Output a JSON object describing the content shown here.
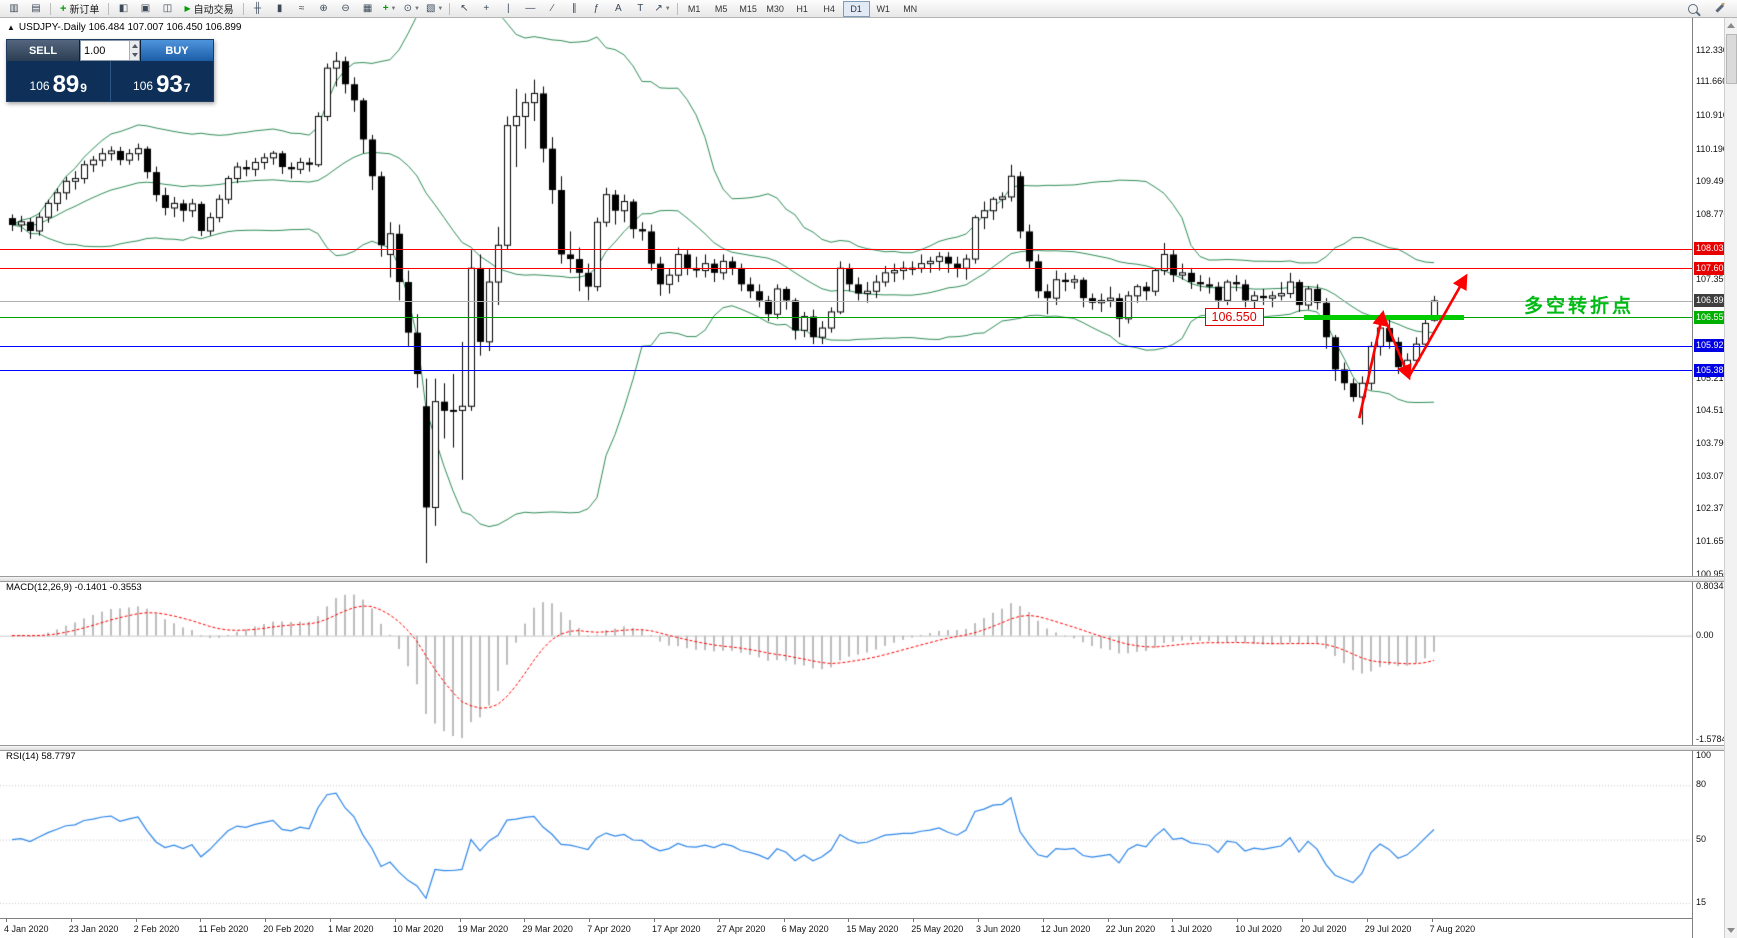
{
  "toolbar": {
    "window_icons": [
      {
        "name": "new-chart",
        "glyph": "▥"
      },
      {
        "name": "chart-profiles",
        "glyph": "▤"
      }
    ],
    "new_order_label": "新订单",
    "panel_icons": [
      {
        "name": "market-watch",
        "glyph": "◧"
      },
      {
        "name": "navigator",
        "glyph": "▣"
      },
      {
        "name": "terminal",
        "glyph": "◫"
      }
    ],
    "auto_trading_label": "自动交易",
    "chart_tool_icons": [
      {
        "name": "bar-chart",
        "glyph": "╫"
      },
      {
        "name": "candlestick-chart",
        "glyph": "▮"
      },
      {
        "name": "line-chart",
        "glyph": "≈"
      },
      {
        "name": "zoom-in",
        "glyph": "⊕"
      },
      {
        "name": "zoom-out",
        "glyph": "⊖"
      },
      {
        "name": "tile-windows",
        "glyph": "▦"
      },
      {
        "name": "indicators",
        "glyph": "+"
      },
      {
        "name": "periods",
        "glyph": "⊙"
      },
      {
        "name": "templates",
        "glyph": "▧"
      }
    ],
    "draw_tool_icons": [
      {
        "name": "cursor",
        "glyph": "↖"
      },
      {
        "name": "crosshair",
        "glyph": "+"
      },
      {
        "name": "vertical-line",
        "glyph": "|"
      },
      {
        "name": "horizontal-line",
        "glyph": "—"
      },
      {
        "name": "trend-line",
        "glyph": "∕"
      },
      {
        "name": "channel",
        "glyph": "∥"
      },
      {
        "name": "fibonacci",
        "glyph": "ƒ"
      },
      {
        "name": "text",
        "glyph": "A"
      },
      {
        "name": "text-label",
        "glyph": "T"
      },
      {
        "name": "arrow-objects",
        "glyph": "↗"
      }
    ],
    "timeframes": [
      "M1",
      "M5",
      "M15",
      "M30",
      "H1",
      "H4",
      "D1",
      "W1",
      "MN"
    ],
    "active_timeframe": "D1"
  },
  "symbol_bar": {
    "marker": "▲",
    "text": "USDJPY-.Daily  106.484 107.007 106.450 106.899"
  },
  "trade_panel": {
    "sell_label": "SELL",
    "buy_label": "BUY",
    "volume": "1.00",
    "sell_price": {
      "prefix": "106",
      "big": "89",
      "sup": "9"
    },
    "buy_price": {
      "prefix": "106",
      "big": "93",
      "sup": "7"
    }
  },
  "chart_data": {
    "type": "candlestick",
    "symbol": "USDJPY-",
    "period": "Daily",
    "colors": {
      "bull": "#FFFFFF",
      "bear": "#000000",
      "outline": "#000000",
      "bollinger": "#2E8B57",
      "histogram": "#BDBDBD",
      "macd_signal": "#FF0000",
      "rsi_line": "#2E86E8",
      "grid": "#C9C9C9"
    },
    "price_axis": {
      "max": 113.05,
      "min": 100.92,
      "plain_labels": [
        [
          "112.330",
          112.33
        ],
        [
          "111.660",
          111.66
        ],
        [
          "110.910",
          110.91
        ],
        [
          "110.190",
          110.19
        ],
        [
          "109.490",
          109.49
        ],
        [
          "108.770",
          108.77
        ],
        [
          "107.350",
          107.35
        ],
        [
          "105.210",
          105.21
        ],
        [
          "104.510",
          104.51
        ],
        [
          "103.790",
          103.79
        ],
        [
          "103.070",
          103.07
        ],
        [
          "102.370",
          102.37
        ],
        [
          "101.650",
          101.65
        ],
        [
          "100.950",
          100.95
        ]
      ]
    },
    "levels": [
      {
        "text": "108.035",
        "value": 108.035,
        "line_color": "#FF0000",
        "tag_bg": "#E80000"
      },
      {
        "text": "107.605",
        "value": 107.605,
        "line_color": "#FF0000",
        "tag_bg": "#E80000"
      },
      {
        "text": "106.899",
        "value": 106.899,
        "line_color": "#AFAFAF",
        "tag_bg": "#3F3F3F"
      },
      {
        "text": "106.550",
        "value": 106.55,
        "line_color": "#00A000",
        "tag_bg": "#00B000"
      },
      {
        "text": "105.926",
        "value": 105.926,
        "line_color": "#0000FF",
        "tag_bg": "#0000E6"
      },
      {
        "text": "105.388",
        "value": 105.388,
        "line_color": "#0000FF",
        "tag_bg": "#0000E6"
      }
    ],
    "bollinger": {
      "period": 20,
      "deviation": 2
    },
    "candles": [
      [
        108.7,
        108.78,
        108.42,
        108.55
      ],
      [
        108.55,
        108.75,
        108.4,
        108.62
      ],
      [
        108.62,
        108.7,
        108.25,
        108.42
      ],
      [
        108.42,
        108.82,
        108.32,
        108.72
      ],
      [
        108.72,
        109.1,
        108.6,
        109.02
      ],
      [
        109.02,
        109.35,
        108.85,
        109.25
      ],
      [
        109.25,
        109.6,
        109.1,
        109.5
      ],
      [
        109.5,
        109.72,
        109.32,
        109.56
      ],
      [
        109.56,
        109.95,
        109.45,
        109.86
      ],
      [
        109.86,
        110.05,
        109.7,
        109.96
      ],
      [
        109.96,
        110.22,
        109.82,
        110.1
      ],
      [
        110.1,
        110.26,
        109.95,
        110.16
      ],
      [
        110.16,
        110.25,
        109.85,
        109.96
      ],
      [
        109.96,
        110.2,
        109.86,
        110.1
      ],
      [
        110.1,
        110.32,
        109.95,
        110.21
      ],
      [
        110.21,
        110.26,
        109.56,
        109.7
      ],
      [
        109.7,
        109.82,
        109.06,
        109.2
      ],
      [
        109.2,
        109.36,
        108.76,
        108.92
      ],
      [
        108.92,
        109.16,
        108.72,
        109.02
      ],
      [
        109.02,
        109.1,
        108.62,
        108.86
      ],
      [
        108.86,
        109.12,
        108.72,
        109.01
      ],
      [
        109.01,
        109.06,
        108.31,
        108.42
      ],
      [
        108.42,
        108.82,
        108.32,
        108.71
      ],
      [
        108.71,
        109.21,
        108.61,
        109.11
      ],
      [
        109.11,
        109.62,
        109.01,
        109.56
      ],
      [
        109.56,
        109.91,
        109.46,
        109.81
      ],
      [
        109.81,
        109.96,
        109.61,
        109.76
      ],
      [
        109.76,
        110.01,
        109.61,
        109.91
      ],
      [
        109.91,
        110.11,
        109.76,
        110.01
      ],
      [
        110.01,
        110.16,
        109.86,
        110.11
      ],
      [
        110.11,
        110.16,
        109.66,
        109.81
      ],
      [
        109.81,
        109.91,
        109.56,
        109.76
      ],
      [
        109.76,
        110.01,
        109.66,
        109.91
      ],
      [
        109.91,
        110.01,
        109.71,
        109.86
      ],
      [
        109.86,
        111.0,
        109.81,
        110.91
      ],
      [
        110.91,
        112.06,
        110.81,
        111.96
      ],
      [
        111.96,
        112.31,
        111.56,
        112.11
      ],
      [
        112.11,
        112.21,
        111.41,
        111.61
      ],
      [
        111.61,
        111.76,
        111.01,
        111.26
      ],
      [
        111.26,
        111.31,
        110.11,
        110.41
      ],
      [
        110.41,
        110.51,
        109.31,
        109.61
      ],
      [
        109.61,
        109.71,
        107.86,
        108.11
      ],
      [
        107.91,
        108.61,
        107.41,
        108.36
      ],
      [
        108.36,
        108.56,
        106.91,
        107.31
      ],
      [
        107.31,
        107.56,
        105.91,
        106.21
      ],
      [
        106.21,
        106.61,
        105.01,
        105.31
      ],
      [
        104.61,
        105.21,
        101.2,
        102.41
      ],
      [
        102.41,
        105.21,
        102.01,
        104.71
      ],
      [
        104.71,
        105.11,
        103.91,
        104.51
      ],
      [
        104.51,
        105.31,
        103.71,
        104.52
      ],
      [
        104.52,
        106.01,
        103.01,
        104.61
      ],
      [
        104.61,
        108.01,
        104.51,
        107.61
      ],
      [
        107.61,
        107.91,
        105.71,
        106.01
      ],
      [
        106.01,
        107.61,
        105.81,
        107.31
      ],
      [
        107.31,
        108.51,
        106.81,
        108.11
      ],
      [
        108.11,
        110.91,
        108.01,
        110.71
      ],
      [
        110.71,
        111.51,
        109.81,
        110.91
      ],
      [
        110.91,
        111.41,
        110.21,
        111.21
      ],
      [
        111.21,
        111.71,
        110.81,
        111.41
      ],
      [
        111.41,
        111.56,
        109.91,
        110.21
      ],
      [
        110.21,
        110.46,
        109.01,
        109.31
      ],
      [
        109.31,
        109.61,
        107.71,
        107.91
      ],
      [
        107.91,
        108.41,
        107.51,
        107.81
      ],
      [
        107.81,
        108.06,
        107.11,
        107.51
      ],
      [
        107.51,
        107.71,
        106.91,
        107.21
      ],
      [
        107.21,
        108.71,
        107.11,
        108.61
      ],
      [
        108.61,
        109.36,
        108.51,
        109.21
      ],
      [
        109.21,
        109.31,
        108.56,
        108.86
      ],
      [
        108.86,
        109.21,
        108.61,
        109.06
      ],
      [
        109.06,
        109.11,
        108.26,
        108.46
      ],
      [
        108.46,
        108.61,
        108.21,
        108.41
      ],
      [
        108.41,
        108.56,
        107.56,
        107.71
      ],
      [
        107.71,
        107.86,
        107.01,
        107.26
      ],
      [
        107.26,
        107.61,
        107.06,
        107.46
      ],
      [
        107.46,
        108.06,
        107.31,
        107.91
      ],
      [
        107.91,
        108.01,
        107.46,
        107.61
      ],
      [
        107.61,
        107.86,
        107.41,
        107.56
      ],
      [
        107.56,
        107.91,
        107.41,
        107.71
      ],
      [
        107.71,
        107.81,
        107.31,
        107.51
      ],
      [
        107.51,
        107.91,
        107.36,
        107.76
      ],
      [
        107.76,
        107.86,
        107.46,
        107.61
      ],
      [
        107.61,
        107.71,
        107.11,
        107.26
      ],
      [
        107.26,
        107.41,
        106.96,
        107.11
      ],
      [
        107.11,
        107.26,
        106.76,
        106.91
      ],
      [
        106.91,
        107.01,
        106.46,
        106.61
      ],
      [
        106.61,
        107.26,
        106.51,
        107.16
      ],
      [
        107.16,
        107.21,
        106.71,
        106.91
      ],
      [
        106.91,
        106.96,
        106.06,
        106.26
      ],
      [
        106.26,
        106.66,
        106.11,
        106.56
      ],
      [
        106.56,
        106.71,
        105.96,
        106.11
      ],
      [
        106.11,
        106.46,
        105.96,
        106.31
      ],
      [
        106.31,
        106.76,
        106.21,
        106.66
      ],
      [
        106.66,
        107.76,
        106.61,
        107.61
      ],
      [
        107.61,
        107.71,
        107.11,
        107.26
      ],
      [
        107.26,
        107.41,
        106.91,
        107.06
      ],
      [
        107.06,
        107.31,
        106.86,
        107.11
      ],
      [
        107.11,
        107.46,
        106.96,
        107.31
      ],
      [
        107.31,
        107.66,
        107.21,
        107.51
      ],
      [
        107.51,
        107.71,
        107.31,
        107.56
      ],
      [
        107.56,
        107.76,
        107.36,
        107.61
      ],
      [
        107.61,
        107.76,
        107.46,
        107.61
      ],
      [
        107.61,
        107.91,
        107.51,
        107.71
      ],
      [
        107.71,
        107.86,
        107.51,
        107.76
      ],
      [
        107.76,
        107.96,
        107.56,
        107.86
      ],
      [
        107.86,
        107.96,
        107.51,
        107.71
      ],
      [
        107.71,
        107.86,
        107.41,
        107.61
      ],
      [
        107.61,
        107.91,
        107.36,
        107.81
      ],
      [
        107.81,
        108.76,
        107.71,
        108.71
      ],
      [
        108.71,
        109.06,
        108.46,
        108.86
      ],
      [
        108.86,
        109.16,
        108.66,
        109.11
      ],
      [
        109.11,
        109.26,
        108.91,
        109.16
      ],
      [
        109.16,
        109.86,
        109.06,
        109.61
      ],
      [
        109.61,
        109.71,
        108.26,
        108.41
      ],
      [
        108.41,
        108.56,
        107.61,
        107.76
      ],
      [
        107.76,
        107.91,
        106.96,
        107.11
      ],
      [
        107.11,
        107.26,
        106.61,
        106.96
      ],
      [
        106.96,
        107.56,
        106.81,
        107.36
      ],
      [
        107.36,
        107.51,
        107.11,
        107.31
      ],
      [
        107.31,
        107.46,
        107.16,
        107.36
      ],
      [
        107.36,
        107.41,
        106.76,
        106.96
      ],
      [
        106.96,
        107.06,
        106.71,
        106.86
      ],
      [
        106.86,
        107.06,
        106.66,
        106.91
      ],
      [
        106.91,
        107.21,
        106.76,
        106.96
      ],
      [
        106.96,
        107.06,
        106.11,
        106.51
      ],
      [
        106.51,
        107.11,
        106.41,
        107.01
      ],
      [
        107.01,
        107.26,
        106.86,
        107.21
      ],
      [
        107.21,
        107.31,
        106.91,
        107.11
      ],
      [
        107.11,
        107.61,
        107.01,
        107.56
      ],
      [
        107.56,
        108.16,
        107.46,
        107.91
      ],
      [
        107.91,
        108.01,
        107.31,
        107.46
      ],
      [
        107.46,
        107.71,
        107.36,
        107.51
      ],
      [
        107.51,
        107.61,
        107.16,
        107.31
      ],
      [
        107.31,
        107.46,
        107.11,
        107.26
      ],
      [
        107.26,
        107.41,
        107.06,
        107.21
      ],
      [
        107.21,
        107.31,
        106.66,
        106.91
      ],
      [
        106.91,
        107.36,
        106.81,
        107.31
      ],
      [
        107.31,
        107.46,
        107.11,
        107.26
      ],
      [
        107.26,
        107.36,
        106.76,
        106.91
      ],
      [
        106.91,
        107.11,
        106.71,
        107.01
      ],
      [
        107.01,
        107.16,
        106.81,
        106.96
      ],
      [
        106.96,
        107.11,
        106.76,
        107.01
      ],
      [
        107.01,
        107.31,
        106.91,
        107.06
      ],
      [
        107.06,
        107.51,
        106.96,
        107.31
      ],
      [
        107.31,
        107.36,
        106.66,
        106.81
      ],
      [
        106.81,
        107.21,
        106.71,
        107.16
      ],
      [
        107.16,
        107.26,
        106.71,
        106.86
      ],
      [
        106.86,
        106.96,
        105.86,
        106.11
      ],
      [
        106.11,
        106.16,
        105.16,
        105.41
      ],
      [
        105.41,
        105.56,
        104.96,
        105.11
      ],
      [
        105.11,
        105.21,
        104.71,
        104.81
      ],
      [
        104.81,
        105.26,
        104.21,
        105.11
      ],
      [
        105.11,
        106.01,
        104.96,
        105.91
      ],
      [
        105.91,
        106.46,
        105.71,
        106.31
      ],
      [
        106.31,
        106.56,
        105.86,
        106.01
      ],
      [
        106.01,
        106.11,
        105.31,
        105.46
      ],
      [
        105.46,
        105.76,
        105.26,
        105.61
      ],
      [
        105.61,
        106.11,
        105.51,
        105.96
      ],
      [
        105.96,
        106.51,
        105.86,
        106.41
      ],
      [
        106.48,
        107.01,
        106.45,
        106.9
      ]
    ],
    "annotations": {
      "price_box": {
        "text": "106.550",
        "index": 132.5,
        "price": 106.55
      },
      "turning_point": {
        "text": "多空转折点",
        "index": 168,
        "price": 106.88,
        "color": "#00BB14"
      },
      "thick_line": {
        "from_index": 143.5,
        "to_index": 161.3,
        "price": 106.55,
        "color": "#00CC00"
      },
      "arrows": [
        {
          "from": [
            149.7,
            104.35
          ],
          "to": [
            152.3,
            106.62
          ]
        },
        {
          "from": [
            152.3,
            106.62
          ],
          "to": [
            155.2,
            105.25
          ]
        },
        {
          "from": [
            155.2,
            105.25
          ],
          "to": [
            161.5,
            107.42
          ]
        }
      ]
    },
    "time_labels": [
      "4 Jan 2020",
      "23 Jan 2020",
      "2 Feb 2020",
      "11 Feb 2020",
      "20 Feb 2020",
      "1 Mar 2020",
      "10 Mar 2020",
      "19 Mar 2020",
      "29 Mar 2020",
      "7 Apr 2020",
      "17 Apr 2020",
      "27 Apr 2020",
      "6 May 2020",
      "15 May 2020",
      "25 May 2020",
      "3 Jun 2020",
      "12 Jun 2020",
      "22 Jun 2020",
      "1 Jul 2020",
      "10 Jul 2020",
      "20 Jul 2020",
      "29 Jul 2020",
      "7 Aug 2020"
    ]
  },
  "macd": {
    "label": "MACD(12,26,9) -0.1401 -0.3553",
    "axis": {
      "max": 0.8034,
      "min": -1.5784
    },
    "scale_labels": [
      [
        "0.8034",
        0.8034
      ],
      [
        "0.00",
        0
      ],
      [
        "-1.5784",
        -1.5784
      ]
    ],
    "params": [
      12,
      26,
      9
    ]
  },
  "rsi": {
    "label": "RSI(14) 58.7797",
    "axis": {
      "max": 100,
      "min": 6.7
    },
    "scale_labels": [
      [
        "100",
        100
      ],
      [
        "80",
        80
      ],
      [
        "50",
        50
      ],
      [
        "15",
        15
      ]
    ],
    "levels": [
      80,
      50,
      15
    ],
    "period": 14
  }
}
